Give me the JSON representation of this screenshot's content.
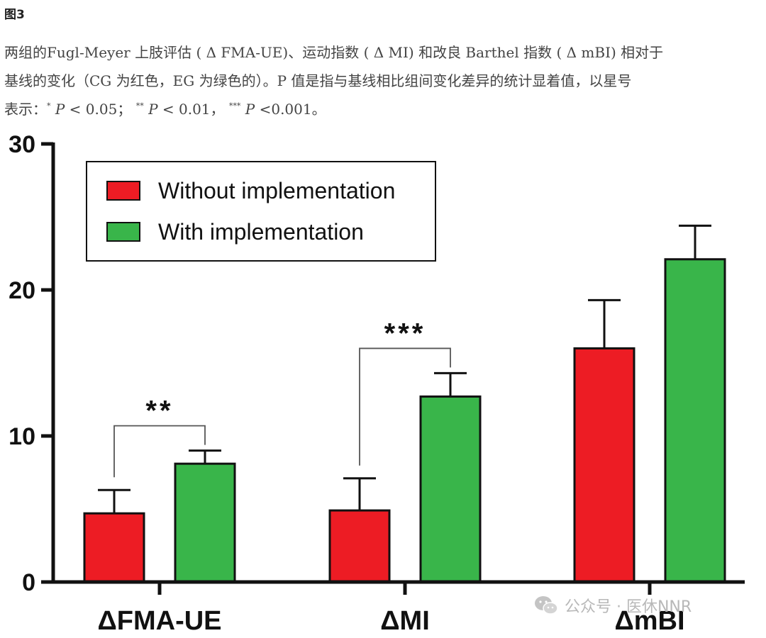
{
  "figure": {
    "label": "图3",
    "caption": {
      "line1": "两组的Fugl-Meyer 上肢评估 ( Δ FMA-UE)、运动指数 ( Δ MI) 和改良 Barthel 指数 ( Δ mBI) 相对于",
      "line2": "基线的变化（CG 为红色，EG 为绿色的）。P 值是指与基线相比组间变化差异的统计显着值，以星号",
      "line3_prefix": "表示：",
      "sig1_mark": "*",
      "sig1_p": "P",
      "sig1_text": " < 0.05；",
      "sig2_mark": "**",
      "sig2_p": "P",
      "sig2_text": " < 0.01，",
      "sig3_mark": "***",
      "sig3_p": "P",
      "sig3_text": " <0.001。"
    }
  },
  "watermark": {
    "text": "公众号 · 医休NNR",
    "icon": "wechat-icon"
  },
  "chart_data": {
    "type": "bar",
    "categories": [
      "ΔFMA-UE",
      "ΔMI",
      "ΔmBI"
    ],
    "series": [
      {
        "name": "Without implementation",
        "color": "#ed1c24",
        "values": [
          4.7,
          4.9,
          16.0
        ],
        "errors": [
          1.6,
          2.2,
          3.3
        ]
      },
      {
        "name": "With implementation",
        "color": "#39b54a",
        "values": [
          8.1,
          12.7,
          22.1
        ],
        "errors": [
          0.9,
          1.6,
          2.3
        ]
      }
    ],
    "ylim": [
      0,
      30
    ],
    "yticks": [
      "0",
      "10",
      "20",
      "30"
    ],
    "xlabel": "",
    "ylabel": "",
    "legend": {
      "position": "top-left",
      "boxed": true
    },
    "significance": [
      {
        "category": "ΔFMA-UE",
        "label": "**"
      },
      {
        "category": "ΔMI",
        "label": "***"
      }
    ]
  }
}
